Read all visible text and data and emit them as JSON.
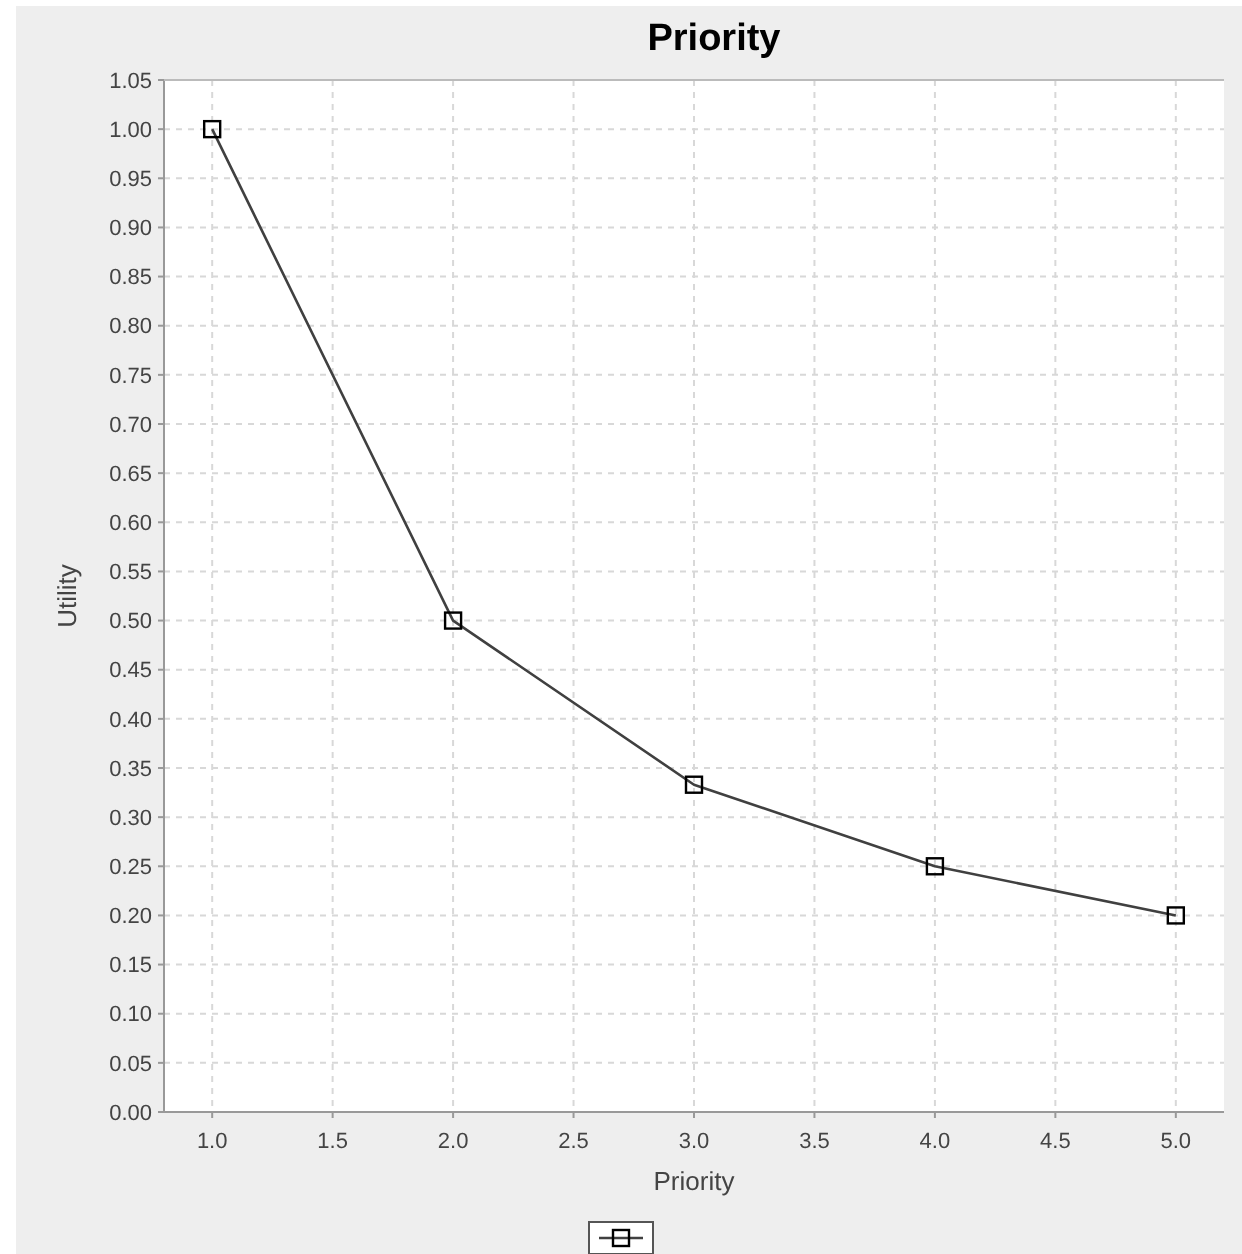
{
  "chart_data": {
    "type": "line",
    "title": "Priority",
    "xlabel": "Priority",
    "ylabel": "Utility",
    "x": [
      1,
      2,
      3,
      4,
      5
    ],
    "series": [
      {
        "color": "#404040",
        "values": [
          1,
          0.5,
          0.333,
          0.25,
          0.2
        ]
      }
    ],
    "xlim": [
      0.8,
      5.2
    ],
    "xticks": [
      {
        "value": 1,
        "label": "1.0"
      },
      {
        "value": 1.5,
        "label": "1.5"
      },
      {
        "value": 2,
        "label": "2.0"
      },
      {
        "value": 2.5,
        "label": "2.5"
      },
      {
        "value": 3,
        "label": "3.0"
      },
      {
        "value": 3.5,
        "label": "3.5"
      },
      {
        "value": 4,
        "label": "4.0"
      },
      {
        "value": 4.5,
        "label": "4.5"
      },
      {
        "value": 5,
        "label": "5.0"
      }
    ],
    "ylim": [
      0,
      1.05
    ],
    "yticks": [
      {
        "value": 0,
        "label": "0.00"
      },
      {
        "value": 0.05,
        "label": "0.05"
      },
      {
        "value": 0.1,
        "label": "0.10"
      },
      {
        "value": 0.15,
        "label": "0.15"
      },
      {
        "value": 0.2,
        "label": "0.20"
      },
      {
        "value": 0.25,
        "label": "0.25"
      },
      {
        "value": 0.3,
        "label": "0.30"
      },
      {
        "value": 0.35,
        "label": "0.35"
      },
      {
        "value": 0.4,
        "label": "0.40"
      },
      {
        "value": 0.45,
        "label": "0.45"
      },
      {
        "value": 0.5,
        "label": "0.50"
      },
      {
        "value": 0.55,
        "label": "0.55"
      },
      {
        "value": 0.6,
        "label": "0.60"
      },
      {
        "value": 0.65,
        "label": "0.65"
      },
      {
        "value": 0.7,
        "label": "0.70"
      },
      {
        "value": 0.75,
        "label": "0.75"
      },
      {
        "value": 0.8,
        "label": "0.80"
      },
      {
        "value": 0.85,
        "label": "0.85"
      },
      {
        "value": 0.9,
        "label": "0.90"
      },
      {
        "value": 0.95,
        "label": "0.95"
      },
      {
        "value": 1,
        "label": "1.00"
      },
      {
        "value": 1.05,
        "label": "1.05"
      }
    ],
    "grid": true,
    "marker": "square",
    "line_style": "solid"
  }
}
